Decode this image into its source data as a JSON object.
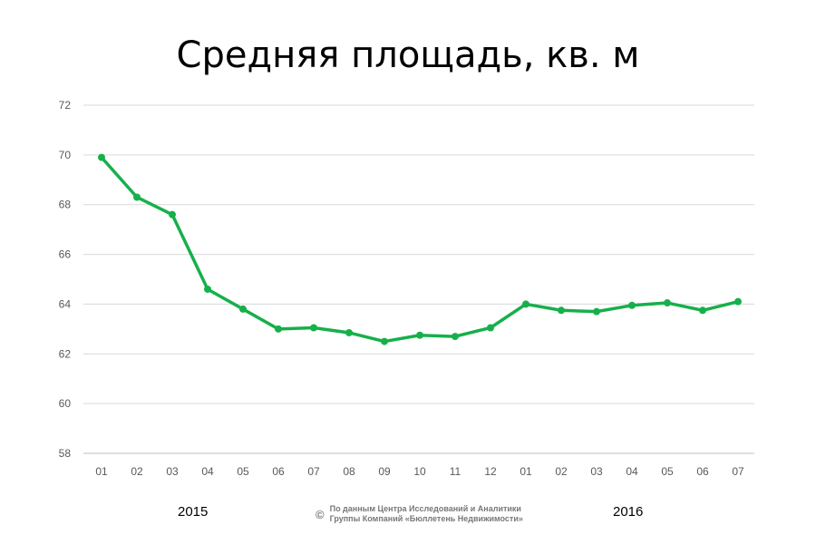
{
  "chart_data": {
    "type": "line",
    "title": "Средняя площадь, кв. м",
    "xlabel": "",
    "ylabel": "",
    "categories": [
      "01",
      "02",
      "03",
      "04",
      "05",
      "06",
      "07",
      "08",
      "09",
      "10",
      "11",
      "12",
      "01",
      "02",
      "03",
      "04",
      "05",
      "06",
      "07"
    ],
    "year_labels": [
      "2015",
      "2016"
    ],
    "series": [
      {
        "name": "Средняя площадь",
        "color": "#16b04b",
        "values": [
          69.9,
          68.3,
          67.6,
          64.6,
          63.8,
          63.0,
          63.05,
          62.85,
          62.5,
          62.75,
          62.7,
          63.05,
          64.0,
          63.75,
          63.7,
          63.95,
          64.05,
          63.75,
          64.1
        ]
      }
    ],
    "ylim": [
      58,
      72
    ],
    "yticks": [
      58,
      60,
      62,
      64,
      66,
      68,
      70,
      72
    ],
    "grid": true,
    "legend": "none"
  },
  "credit": {
    "symbol": "©",
    "line1": "По данным Центра Исследований и Аналитики",
    "line2": "Группы Компаний «Бюллетень Недвижимости»"
  }
}
